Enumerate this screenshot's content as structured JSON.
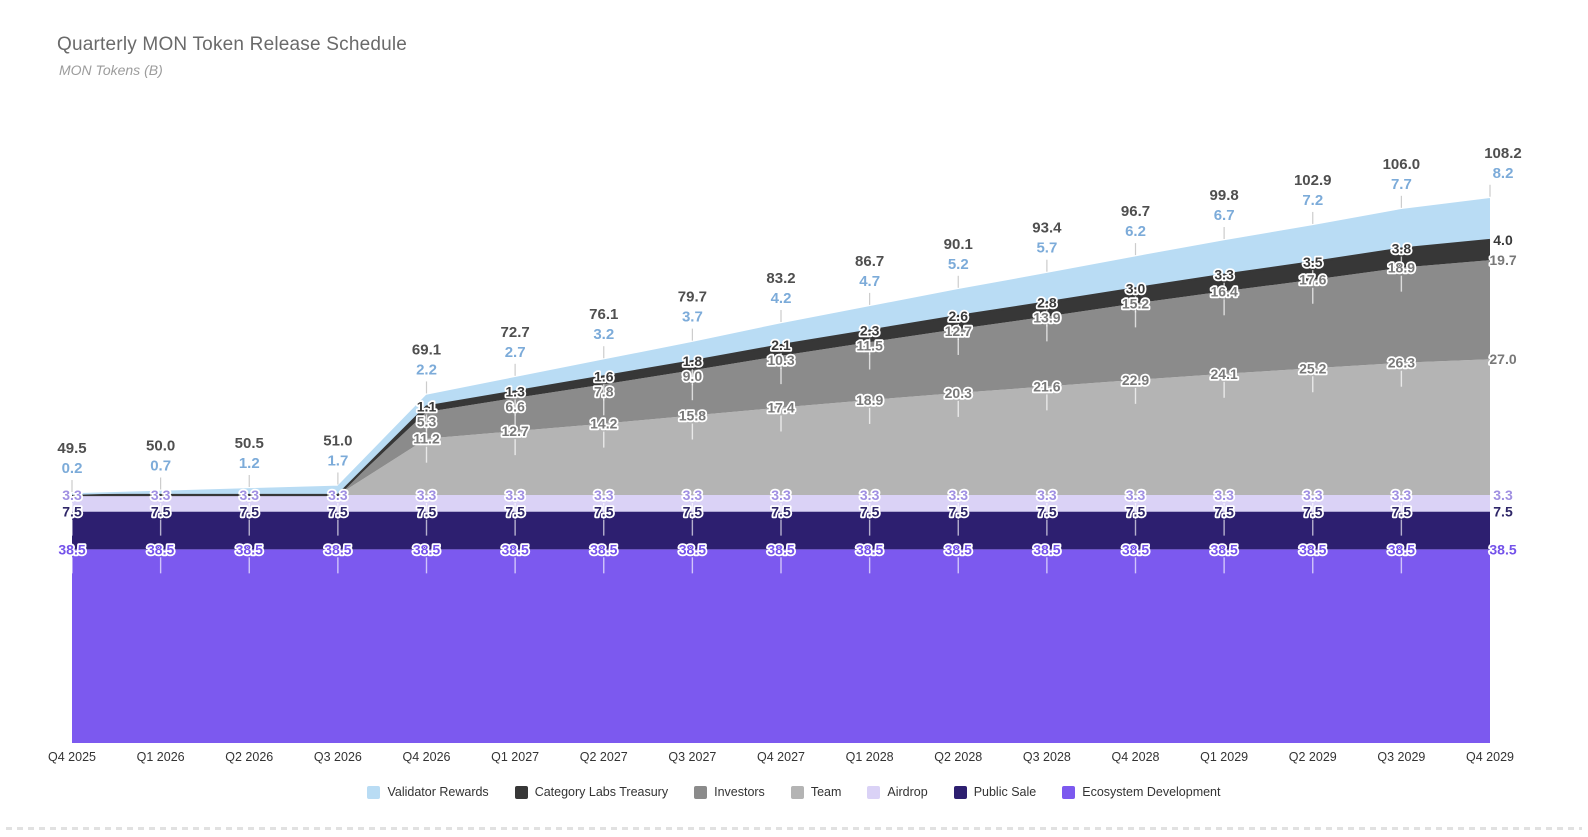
{
  "chart_data": {
    "type": "area",
    "stacked": true,
    "title": "Quarterly MON Token Release Schedule",
    "subtitle": "MON Tokens (B)",
    "ylabel": "MON Tokens (B)",
    "legend_position": "bottom",
    "grid": false,
    "categories": [
      "Q4 2025",
      "Q1 2026",
      "Q2 2026",
      "Q3 2026",
      "Q4 2026",
      "Q1 2027",
      "Q2 2027",
      "Q3 2027",
      "Q4 2027",
      "Q1 2028",
      "Q2 2028",
      "Q3 2028",
      "Q4 2028",
      "Q1 2029",
      "Q2 2029",
      "Q3 2029",
      "Q4 2029"
    ],
    "series": [
      {
        "name": "Ecosystem Development",
        "color": "#7c59ef",
        "label_color": "#7452ea",
        "values": [
          38.5,
          38.5,
          38.5,
          38.5,
          38.5,
          38.5,
          38.5,
          38.5,
          38.5,
          38.5,
          38.5,
          38.5,
          38.5,
          38.5,
          38.5,
          38.5,
          38.5
        ]
      },
      {
        "name": "Public Sale",
        "color": "#2d1f70",
        "label_color": "#2e2668",
        "values": [
          7.5,
          7.5,
          7.5,
          7.5,
          7.5,
          7.5,
          7.5,
          7.5,
          7.5,
          7.5,
          7.5,
          7.5,
          7.5,
          7.5,
          7.5,
          7.5,
          7.5
        ]
      },
      {
        "name": "Airdrop",
        "color": "#dad2f6",
        "label_color": "#a090e2",
        "values": [
          3.3,
          3.3,
          3.3,
          3.3,
          3.3,
          3.3,
          3.3,
          3.3,
          3.3,
          3.3,
          3.3,
          3.3,
          3.3,
          3.3,
          3.3,
          3.3,
          3.3
        ]
      },
      {
        "name": "Team",
        "color": "#b4b4b4",
        "label_color": "#787878",
        "values": [
          0,
          0,
          0,
          0,
          11.2,
          12.7,
          14.2,
          15.8,
          17.4,
          18.9,
          20.3,
          21.6,
          22.9,
          24.1,
          25.2,
          26.3,
          27.0
        ]
      },
      {
        "name": "Investors",
        "color": "#8b8b8b",
        "label_color": "#787878",
        "values": [
          0,
          0,
          0,
          0,
          5.3,
          6.6,
          7.8,
          9.0,
          10.3,
          11.5,
          12.7,
          13.9,
          15.2,
          16.4,
          17.6,
          18.9,
          19.7
        ]
      },
      {
        "name": "Category Labs Treasury",
        "color": "#373737",
        "label_color": "#3a3a3a",
        "values": [
          0,
          0,
          0,
          0,
          1.1,
          1.3,
          1.6,
          1.8,
          2.1,
          2.3,
          2.6,
          2.8,
          3.0,
          3.3,
          3.5,
          3.8,
          4.0
        ]
      },
      {
        "name": "Validator Rewards",
        "color": "#b9dcf4",
        "label_color": "#7cabd9",
        "values": [
          0.2,
          0.7,
          1.2,
          1.7,
          2.2,
          2.7,
          3.2,
          3.7,
          4.2,
          4.7,
          5.2,
          5.7,
          6.2,
          6.7,
          7.2,
          7.7,
          8.2
        ]
      }
    ],
    "totals": [
      49.5,
      50.0,
      50.5,
      51.0,
      69.1,
      72.7,
      76.1,
      79.7,
      83.2,
      86.7,
      90.1,
      93.4,
      96.7,
      99.8,
      102.9,
      106.0,
      108.2
    ],
    "totals_color": "#4f4f4f"
  }
}
